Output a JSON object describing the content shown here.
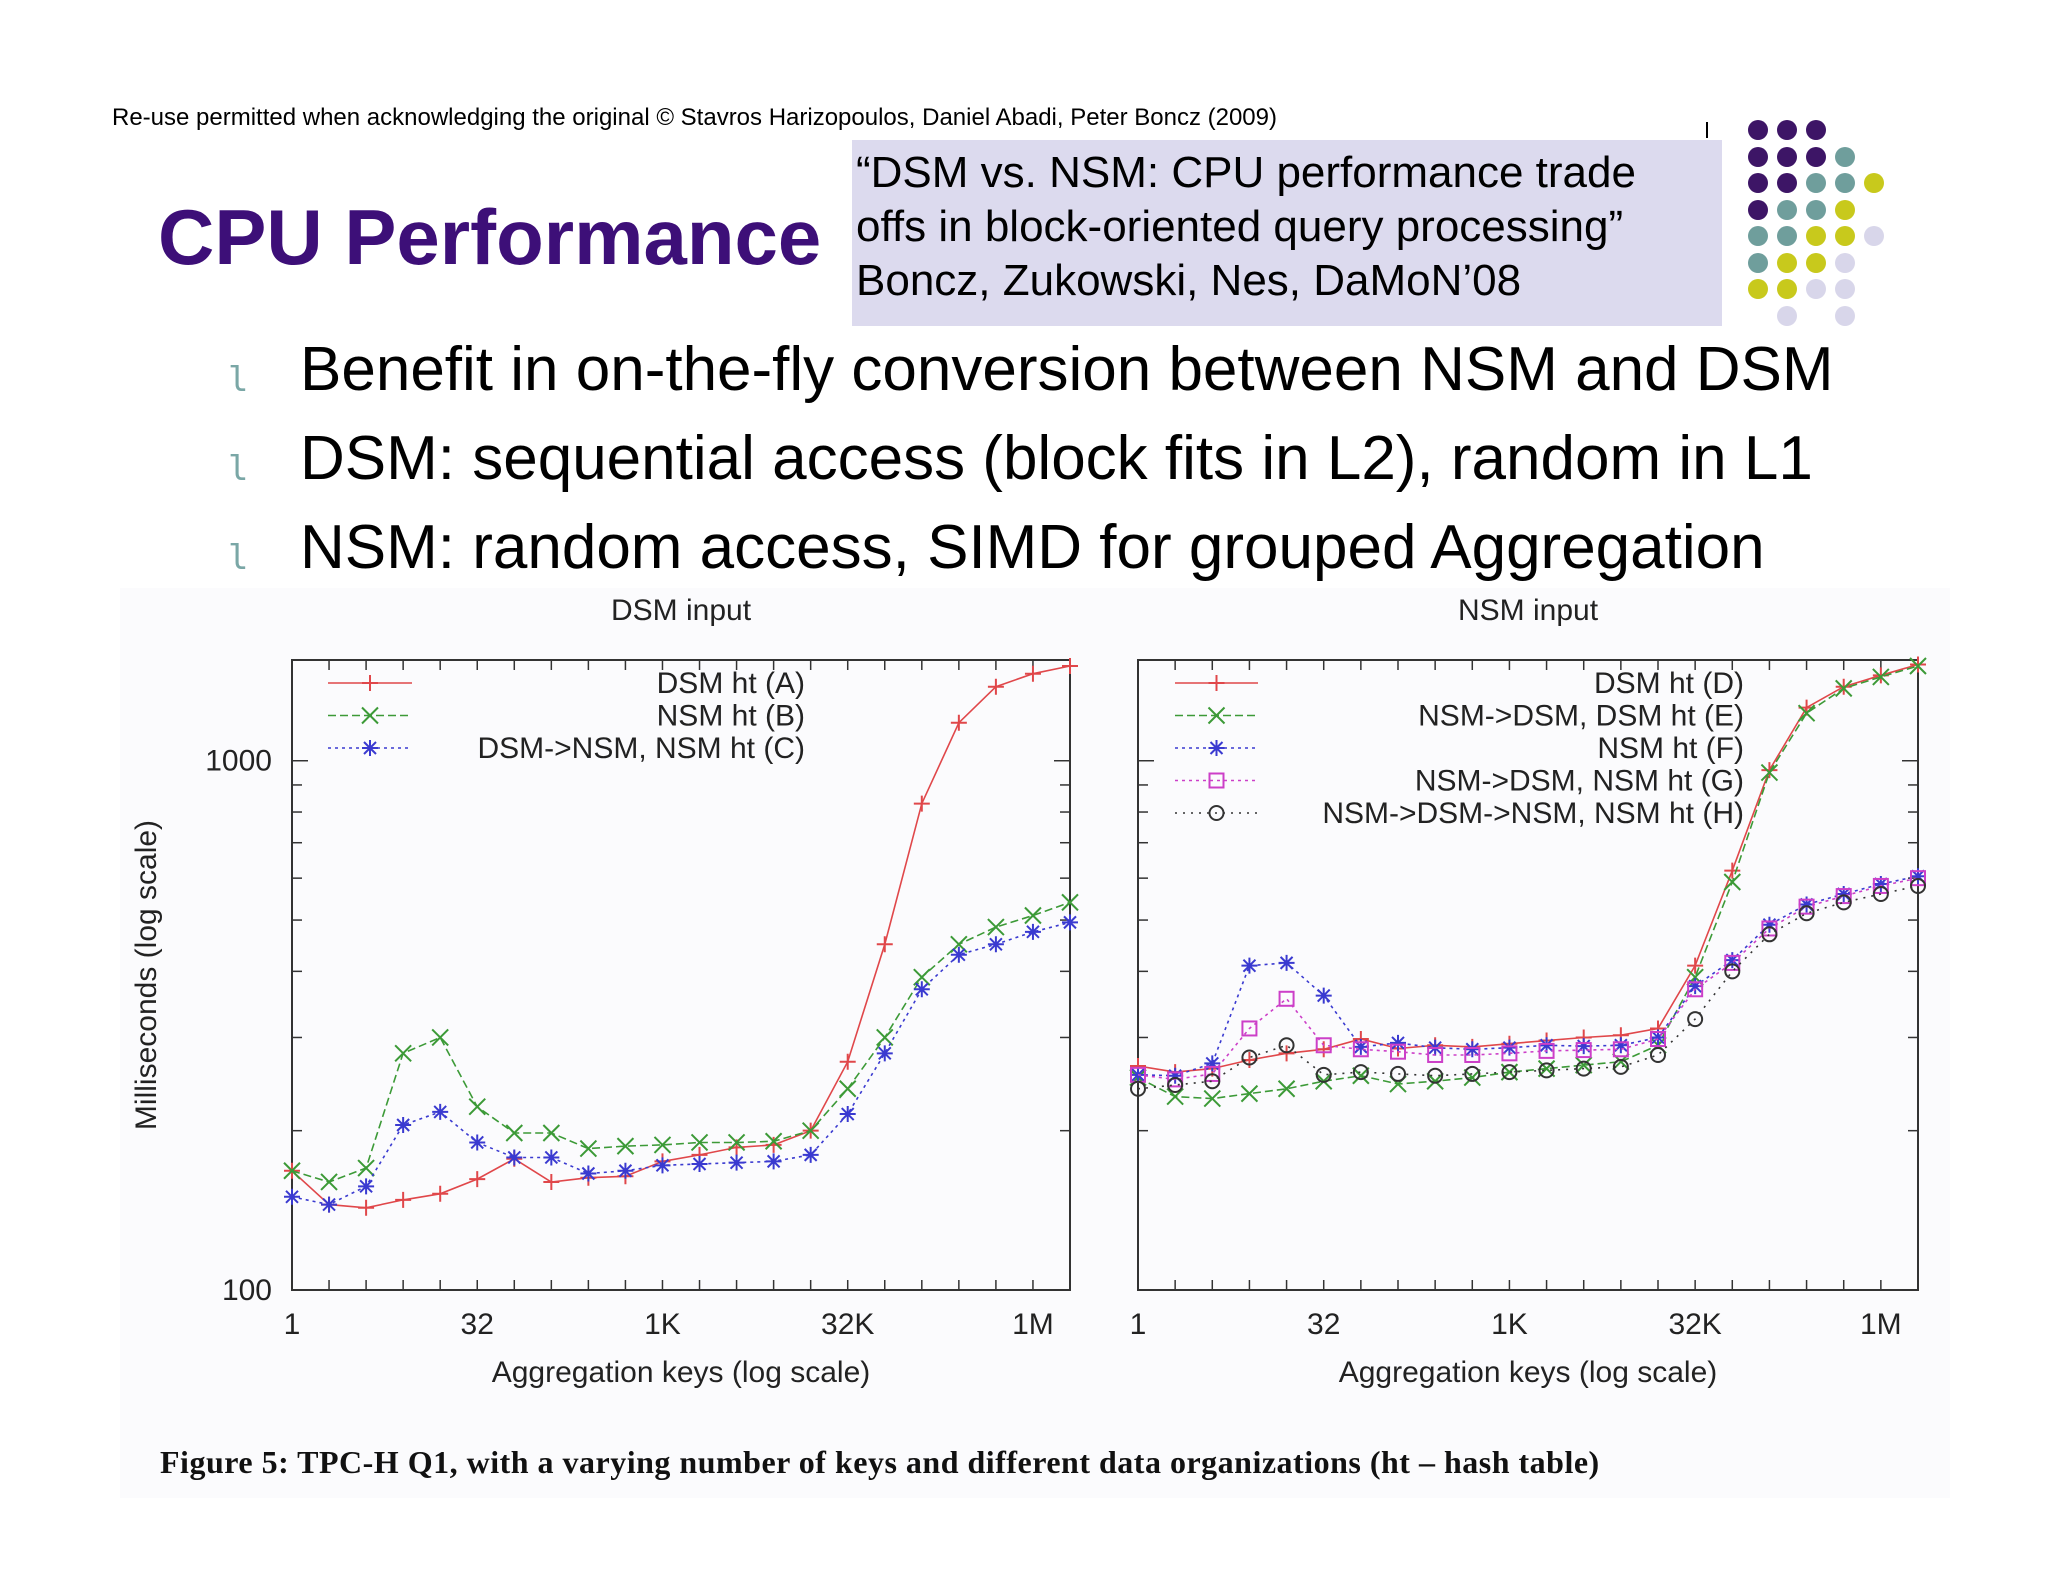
{
  "slide": {
    "copyright": "Re-use permitted when acknowledging the original © Stavros Harizopoulos, Daniel Abadi, Peter Boncz (2009)",
    "title": "CPU Performance",
    "reference": {
      "line1": "“DSM vs. NSM: CPU performance trade",
      "line2": "offs in block-oriented query processing”",
      "line3": "Boncz, Zukowski, Nes, DaMoN’08"
    },
    "bullet_marker": "l",
    "bullets": [
      "Benefit in on-the-fly conversion between NSM and DSM",
      "DSM: sequential access (block fits in L2), random in L1",
      "NSM: random access, SIMD for grouped Aggregation"
    ],
    "caption": "Figure 5: TPC-H Q1, with a varying number of keys and different data organizations (ht – hash table)",
    "colors": {
      "title": "#3d0f78",
      "ref_box": "#dcdaee",
      "dot_purple": "#3d1566",
      "dot_teal": "#6f9e9c",
      "dot_yellow": "#c8c91c",
      "dot_lavender": "#d8d6ea"
    }
  },
  "chart_data": [
    {
      "type": "line",
      "title": "DSM input",
      "xlabel": "Aggregation keys (log scale)",
      "ylabel": "Milliseconds (log scale)",
      "x_scale": "log2",
      "y_scale": "log",
      "x_ticks": [
        "1",
        "32",
        "1K",
        "32K",
        "1M"
      ],
      "y_ticks": [
        "100",
        "1000"
      ],
      "ylim": [
        100,
        1550
      ],
      "x": [
        1,
        2,
        4,
        8,
        16,
        32,
        64,
        128,
        256,
        512,
        1024,
        2048,
        4096,
        8192,
        16384,
        32768,
        65536,
        131072,
        262144,
        524288,
        1048576,
        2097152
      ],
      "series": [
        {
          "name": "DSM ht (A)",
          "color": "#e0474a",
          "marker": "+",
          "dash": "",
          "values": [
            168,
            145,
            143,
            148,
            152,
            162,
            177,
            160,
            163,
            164,
            175,
            180,
            186,
            188,
            200,
            270,
            450,
            830,
            1180,
            1380,
            1460,
            1510
          ]
        },
        {
          "name": "NSM ht (B)",
          "color": "#3c9a37",
          "marker": "x",
          "dash": "8,4",
          "values": [
            168,
            160,
            170,
            280,
            300,
            222,
            198,
            198,
            185,
            187,
            188,
            190,
            190,
            191,
            200,
            240,
            300,
            390,
            450,
            485,
            510,
            540
          ]
        },
        {
          "name": "DSM->NSM, NSM ht (C)",
          "color": "#3a3ad0",
          "marker": "*",
          "dash": "3,4",
          "values": [
            150,
            145,
            157,
            205,
            217,
            190,
            178,
            178,
            166,
            168,
            172,
            173,
            174,
            175,
            180,
            215,
            280,
            370,
            430,
            450,
            475,
            495
          ]
        }
      ]
    },
    {
      "type": "line",
      "title": "NSM input",
      "xlabel": "Aggregation keys (log scale)",
      "ylabel": "",
      "x_scale": "log2",
      "y_scale": "log",
      "x_ticks": [
        "1",
        "32",
        "1K",
        "32K",
        "1M"
      ],
      "ylim": [
        100,
        1550
      ],
      "x": [
        1,
        2,
        4,
        8,
        16,
        32,
        64,
        128,
        256,
        512,
        1024,
        2048,
        4096,
        8192,
        16384,
        32768,
        65536,
        131072,
        262144,
        524288,
        1048576,
        2097152
      ],
      "series": [
        {
          "name": "DSM ht (D)",
          "color": "#e0474a",
          "marker": "+",
          "dash": "",
          "values": [
            265,
            258,
            262,
            272,
            280,
            285,
            298,
            286,
            290,
            288,
            292,
            296,
            300,
            303,
            312,
            410,
            620,
            960,
            1260,
            1380,
            1450,
            1520
          ]
        },
        {
          "name": "NSM->DSM, DSM ht (E)",
          "color": "#3c9a37",
          "marker": "x",
          "dash": "8,4",
          "values": [
            252,
            232,
            230,
            235,
            240,
            248,
            254,
            245,
            248,
            252,
            258,
            262,
            266,
            270,
            290,
            390,
            590,
            950,
            1230,
            1370,
            1440,
            1510
          ]
        },
        {
          "name": "NSM ht (F)",
          "color": "#3a3ad0",
          "marker": "*",
          "dash": "3,4",
          "values": [
            255,
            254,
            268,
            410,
            415,
            360,
            288,
            293,
            287,
            285,
            287,
            290,
            289,
            290,
            300,
            375,
            420,
            490,
            535,
            560,
            585,
            605
          ]
        },
        {
          "name": "NSM->DSM, NSM ht (G)",
          "color": "#cc3fc8",
          "marker": "square",
          "dash": "3,4",
          "values": [
            255,
            250,
            256,
            312,
            355,
            290,
            285,
            282,
            278,
            278,
            280,
            283,
            284,
            285,
            298,
            370,
            415,
            482,
            530,
            555,
            580,
            600
          ]
        },
        {
          "name": "NSM->DSM->NSM, NSM ht (H)",
          "color": "#333333",
          "marker": "circle",
          "dash": "2,6",
          "values": [
            240,
            244,
            248,
            275,
            290,
            255,
            258,
            256,
            254,
            256,
            258,
            260,
            262,
            264,
            278,
            325,
            400,
            470,
            515,
            540,
            560,
            580
          ]
        }
      ]
    }
  ]
}
